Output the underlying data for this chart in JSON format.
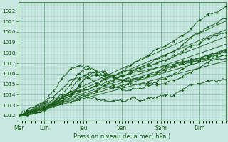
{
  "xlabel": "Pression niveau de la mer( hPa )",
  "ylim": [
    1011.5,
    1022.8
  ],
  "yticks": [
    1012,
    1013,
    1014,
    1015,
    1016,
    1017,
    1018,
    1019,
    1020,
    1021,
    1022
  ],
  "day_labels": [
    "Mer",
    "Lun",
    "Jeu",
    "Ven",
    "Sam",
    "Dim"
  ],
  "day_positions": [
    0,
    48,
    120,
    192,
    264,
    336
  ],
  "total_hours": 384,
  "bg_color": "#c8e8e0",
  "grid_color": "#90c4b8",
  "line_color": "#1a5c1a",
  "vline_color": "#3a7a3a"
}
